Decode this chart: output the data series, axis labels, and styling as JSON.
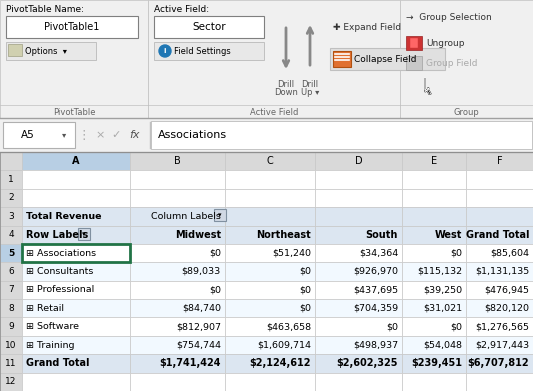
{
  "ribbon": {
    "pivot_name_label": "PivotTable Name:",
    "pivot_name_value": "PivotTable1",
    "active_field_label": "Active Field:",
    "active_field_value": "Sector",
    "options_btn": "🖹 Options",
    "field_settings_btn": "Field Settings",
    "drill_down": "Drill\nDown",
    "drill_up": "Drill\nUp",
    "expand_field": "Expand Field",
    "collapse_field": "Collapse Field",
    "group_selection": "Group Selection",
    "ungroup": "Ungroup",
    "group_field": "Group Field",
    "section_pivot": "PivotTable",
    "section_active": "Active Field",
    "section_group": "Group"
  },
  "formula_bar": {
    "cell_ref": "A5",
    "formula": "Associations"
  },
  "col_headers": [
    "A",
    "B",
    "C",
    "D",
    "E",
    "F"
  ],
  "table_rows": [
    {
      "num": 1,
      "cells": [
        "",
        "",
        "",
        "",
        "",
        ""
      ],
      "bg": "#ffffff"
    },
    {
      "num": 2,
      "cells": [
        "",
        "",
        "",
        "",
        "",
        ""
      ],
      "bg": "#ffffff"
    },
    {
      "num": 3,
      "cells": [
        "Total Revenue",
        "Column Labels",
        "",
        "",
        "",
        ""
      ],
      "bg": "#dce6f1",
      "bold_a": true
    },
    {
      "num": 4,
      "cells": [
        "Row Labels",
        "Midwest",
        "Northeast",
        "South",
        "West",
        "Grand Total"
      ],
      "bg": "#dce6f1",
      "bold_all": true
    },
    {
      "num": 5,
      "cells": [
        "⊞ Associations",
        "$0",
        "$51,240",
        "$34,364",
        "$0",
        "$85,604"
      ],
      "bg": "#ffffff",
      "selected": true
    },
    {
      "num": 6,
      "cells": [
        "⊞ Consultants",
        "$89,033",
        "$0",
        "$926,970",
        "$115,132",
        "$1,131,135"
      ],
      "bg": "#f2f9ff"
    },
    {
      "num": 7,
      "cells": [
        "⊞ Professional",
        "$0",
        "$0",
        "$437,695",
        "$39,250",
        "$476,945"
      ],
      "bg": "#ffffff"
    },
    {
      "num": 8,
      "cells": [
        "⊞ Retail",
        "$84,740",
        "$0",
        "$704,359",
        "$31,021",
        "$820,120"
      ],
      "bg": "#f2f9ff"
    },
    {
      "num": 9,
      "cells": [
        "⊞ Software",
        "$812,907",
        "$463,658",
        "$0",
        "$0",
        "$1,276,565"
      ],
      "bg": "#ffffff"
    },
    {
      "num": 10,
      "cells": [
        "⊞ Training",
        "$754,744",
        "$1,609,714",
        "$498,937",
        "$54,048",
        "$2,917,443"
      ],
      "bg": "#f2f9ff"
    },
    {
      "num": 11,
      "cells": [
        "Grand Total",
        "$1,741,424",
        "$2,124,612",
        "$2,602,325",
        "$239,451",
        "$6,707,812"
      ],
      "bg": "#dce6f1",
      "bold_all": true
    },
    {
      "num": 12,
      "cells": [
        "",
        "",
        "",
        "",
        "",
        ""
      ],
      "bg": "#ffffff"
    }
  ],
  "colors": {
    "ribbon_bg": "#f0f0f0",
    "ribbon_border": "#c0c0c0",
    "selected_border": "#217346",
    "col_header_bg": "#d9d9d9",
    "col_A_header_bg": "#b8cfe4",
    "row_num_bg": "#d9d9d9",
    "row_num_selected_bg": "#b8cfe4",
    "grid": "#c8c8c8",
    "pivot_row_bg": "#dce6f1",
    "white": "#ffffff",
    "collapse_btn_bg": "#e07030",
    "collapse_btn_border": "#b05010",
    "text": "#000000",
    "text_gray": "#666666",
    "text_lightgray": "#aaaaaa",
    "formula_bar_bg": "#ffffff",
    "formula_border": "#b0b0b0"
  }
}
